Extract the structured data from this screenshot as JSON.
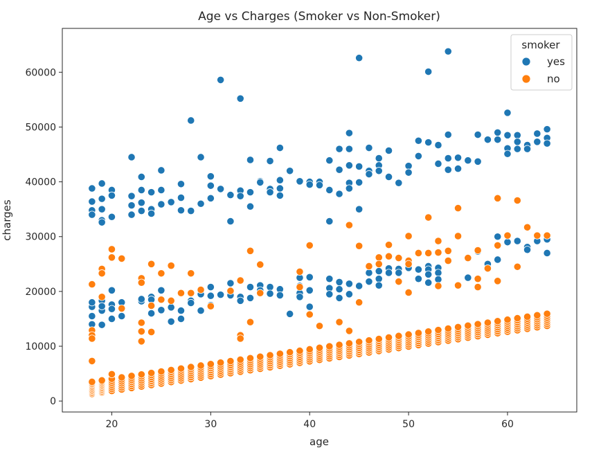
{
  "chart_data": {
    "type": "scatter",
    "title": "Age vs Charges (Smoker vs Non-Smoker)",
    "xlabel": "age",
    "ylabel": "charges",
    "xlim": [
      15,
      67
    ],
    "ylim": [
      -2000,
      68000
    ],
    "xticks": [
      20,
      30,
      40,
      50,
      60
    ],
    "yticks": [
      0,
      10000,
      20000,
      30000,
      40000,
      50000,
      60000
    ],
    "grid": false,
    "legend": {
      "title": "smoker",
      "position": "top-right"
    },
    "series": [
      {
        "name": "yes",
        "color": "#1f77b4",
        "points": [
          [
            18,
            38800
          ],
          [
            18,
            36400
          ],
          [
            18,
            34800
          ],
          [
            18,
            34000
          ],
          [
            18,
            17200
          ],
          [
            18,
            15500
          ],
          [
            18,
            14000
          ],
          [
            18,
            18000
          ],
          [
            19,
            39700
          ],
          [
            19,
            36900
          ],
          [
            19,
            35000
          ],
          [
            19,
            33000
          ],
          [
            19,
            32600
          ],
          [
            19,
            18300
          ],
          [
            19,
            16500
          ],
          [
            19,
            13900
          ],
          [
            19,
            17300
          ],
          [
            20,
            38500
          ],
          [
            20,
            37500
          ],
          [
            20,
            33600
          ],
          [
            20,
            20200
          ],
          [
            20,
            17600
          ],
          [
            20,
            16800
          ],
          [
            20,
            15000
          ],
          [
            21,
            15500
          ],
          [
            21,
            18000
          ],
          [
            22,
            44500
          ],
          [
            22,
            37400
          ],
          [
            22,
            35700
          ],
          [
            22,
            34000
          ],
          [
            23,
            40900
          ],
          [
            23,
            38500
          ],
          [
            23,
            36200
          ],
          [
            23,
            34700
          ],
          [
            23,
            18200
          ],
          [
            23,
            18600
          ],
          [
            24,
            38100
          ],
          [
            24,
            35000
          ],
          [
            24,
            34200
          ],
          [
            24,
            19000
          ],
          [
            24,
            18500
          ],
          [
            24,
            16000
          ],
          [
            25,
            42100
          ],
          [
            25,
            38500
          ],
          [
            25,
            35900
          ],
          [
            25,
            16600
          ],
          [
            25,
            20200
          ],
          [
            26,
            36300
          ],
          [
            26,
            14500
          ],
          [
            26,
            17100
          ],
          [
            27,
            39600
          ],
          [
            27,
            37100
          ],
          [
            27,
            34800
          ],
          [
            27,
            16500
          ],
          [
            27,
            15000
          ],
          [
            28,
            51200
          ],
          [
            28,
            34700
          ],
          [
            28,
            18300
          ],
          [
            28,
            17900
          ],
          [
            29,
            44500
          ],
          [
            29,
            36000
          ],
          [
            29,
            19500
          ],
          [
            29,
            16500
          ],
          [
            30,
            41000
          ],
          [
            30,
            39300
          ],
          [
            30,
            37000
          ],
          [
            30,
            20800
          ],
          [
            30,
            19200
          ],
          [
            30,
            17500
          ],
          [
            31,
            58600
          ],
          [
            31,
            38700
          ],
          [
            31,
            19400
          ],
          [
            32,
            37600
          ],
          [
            32,
            32800
          ],
          [
            32,
            21500
          ],
          [
            32,
            19300
          ],
          [
            33,
            55200
          ],
          [
            33,
            38400
          ],
          [
            33,
            37400
          ],
          [
            33,
            19000
          ],
          [
            33,
            18300
          ],
          [
            34,
            44000
          ],
          [
            34,
            38100
          ],
          [
            34,
            35500
          ],
          [
            34,
            20800
          ],
          [
            34,
            18800
          ],
          [
            35,
            40100
          ],
          [
            35,
            39900
          ],
          [
            35,
            21100
          ],
          [
            35,
            20200
          ],
          [
            36,
            43800
          ],
          [
            36,
            38700
          ],
          [
            36,
            38100
          ],
          [
            36,
            20800
          ],
          [
            36,
            19600
          ],
          [
            37,
            46200
          ],
          [
            37,
            40300
          ],
          [
            37,
            38800
          ],
          [
            37,
            37500
          ],
          [
            37,
            20400
          ],
          [
            37,
            19300
          ],
          [
            38,
            42000
          ],
          [
            38,
            15900
          ],
          [
            39,
            40100
          ],
          [
            39,
            22500
          ],
          [
            39,
            21000
          ],
          [
            39,
            19700
          ],
          [
            39,
            19000
          ],
          [
            40,
            40000
          ],
          [
            40,
            39500
          ],
          [
            40,
            22600
          ],
          [
            40,
            20200
          ],
          [
            40,
            17200
          ],
          [
            41,
            40000
          ],
          [
            41,
            39400
          ],
          [
            42,
            43900
          ],
          [
            42,
            38500
          ],
          [
            42,
            32800
          ],
          [
            42,
            22300
          ],
          [
            42,
            20600
          ],
          [
            42,
            19500
          ],
          [
            43,
            46000
          ],
          [
            43,
            42200
          ],
          [
            43,
            37800
          ],
          [
            43,
            21700
          ],
          [
            43,
            20400
          ],
          [
            43,
            18800
          ],
          [
            44,
            48900
          ],
          [
            44,
            46000
          ],
          [
            44,
            43000
          ],
          [
            44,
            39800
          ],
          [
            44,
            38800
          ],
          [
            44,
            21400
          ],
          [
            44,
            19500
          ],
          [
            45,
            62600
          ],
          [
            45,
            42800
          ],
          [
            45,
            39900
          ],
          [
            45,
            35000
          ],
          [
            45,
            21000
          ],
          [
            46,
            46200
          ],
          [
            46,
            42000
          ],
          [
            46,
            41400
          ],
          [
            46,
            23400
          ],
          [
            46,
            21800
          ],
          [
            47,
            44300
          ],
          [
            47,
            43000
          ],
          [
            47,
            42000
          ],
          [
            47,
            25000
          ],
          [
            47,
            23700
          ],
          [
            47,
            22300
          ],
          [
            47,
            21100
          ],
          [
            48,
            45700
          ],
          [
            48,
            40900
          ],
          [
            48,
            24200
          ],
          [
            48,
            23400
          ],
          [
            49,
            39800
          ],
          [
            49,
            24100
          ],
          [
            49,
            23400
          ],
          [
            50,
            42900
          ],
          [
            50,
            41700
          ],
          [
            50,
            24800
          ],
          [
            50,
            24300
          ],
          [
            51,
            47500
          ],
          [
            51,
            44700
          ],
          [
            51,
            24000
          ],
          [
            51,
            22300
          ],
          [
            52,
            60100
          ],
          [
            52,
            47200
          ],
          [
            52,
            24600
          ],
          [
            52,
            24000
          ],
          [
            52,
            23100
          ],
          [
            52,
            21600
          ],
          [
            53,
            46700
          ],
          [
            53,
            43300
          ],
          [
            53,
            24300
          ],
          [
            53,
            23400
          ],
          [
            53,
            22200
          ],
          [
            54,
            63800
          ],
          [
            54,
            48600
          ],
          [
            54,
            44300
          ],
          [
            54,
            42200
          ],
          [
            55,
            44400
          ],
          [
            55,
            42400
          ],
          [
            56,
            43900
          ],
          [
            56,
            22500
          ],
          [
            56,
            26100
          ],
          [
            57,
            48600
          ],
          [
            57,
            43700
          ],
          [
            57,
            27300
          ],
          [
            58,
            47700
          ],
          [
            58,
            25000
          ],
          [
            59,
            49000
          ],
          [
            59,
            47700
          ],
          [
            59,
            30000
          ],
          [
            59,
            25800
          ],
          [
            60,
            52600
          ],
          [
            60,
            48500
          ],
          [
            60,
            46100
          ],
          [
            60,
            45100
          ],
          [
            60,
            29000
          ],
          [
            61,
            48500
          ],
          [
            61,
            47300
          ],
          [
            61,
            46000
          ],
          [
            61,
            29200
          ],
          [
            62,
            46700
          ],
          [
            62,
            46000
          ],
          [
            62,
            28100
          ],
          [
            62,
            27600
          ],
          [
            63,
            48800
          ],
          [
            63,
            47300
          ],
          [
            63,
            29200
          ],
          [
            64,
            49600
          ],
          [
            64,
            48000
          ],
          [
            64,
            47000
          ],
          [
            64,
            29500
          ],
          [
            64,
            27000
          ]
        ]
      },
      {
        "name": "no",
        "color": "#ff7f0e",
        "points": [
          [
            18,
            21300
          ],
          [
            18,
            12900
          ],
          [
            18,
            12000
          ],
          [
            18,
            11400
          ],
          [
            18,
            7300
          ],
          [
            19,
            24100
          ],
          [
            19,
            23300
          ],
          [
            19,
            19000
          ],
          [
            20,
            27700
          ],
          [
            20,
            26200
          ],
          [
            20,
            4900
          ],
          [
            21,
            26000
          ],
          [
            21,
            16900
          ],
          [
            23,
            22400
          ],
          [
            23,
            21600
          ],
          [
            23,
            14300
          ],
          [
            23,
            12700
          ],
          [
            23,
            10900
          ],
          [
            24,
            25000
          ],
          [
            24,
            17400
          ],
          [
            24,
            12600
          ],
          [
            25,
            23300
          ],
          [
            25,
            18500
          ],
          [
            26,
            24700
          ],
          [
            26,
            18300
          ],
          [
            27,
            19700
          ],
          [
            28,
            23300
          ],
          [
            28,
            19700
          ],
          [
            29,
            20300
          ],
          [
            30,
            17300
          ],
          [
            32,
            20100
          ],
          [
            33,
            22000
          ],
          [
            33,
            12000
          ],
          [
            33,
            11400
          ],
          [
            34,
            27400
          ],
          [
            34,
            14400
          ],
          [
            35,
            24900
          ],
          [
            35,
            19700
          ],
          [
            39,
            23600
          ],
          [
            39,
            20800
          ],
          [
            40,
            28400
          ],
          [
            40,
            15800
          ],
          [
            41,
            13700
          ],
          [
            43,
            14400
          ],
          [
            44,
            32100
          ],
          [
            44,
            12800
          ],
          [
            45,
            28300
          ],
          [
            45,
            18000
          ],
          [
            46,
            24600
          ],
          [
            47,
            26200
          ],
          [
            47,
            25000
          ],
          [
            48,
            28500
          ],
          [
            48,
            26400
          ],
          [
            49,
            26100
          ],
          [
            49,
            21800
          ],
          [
            50,
            30100
          ],
          [
            50,
            25600
          ],
          [
            50,
            25000
          ],
          [
            50,
            19800
          ],
          [
            51,
            27000
          ],
          [
            52,
            33500
          ],
          [
            52,
            27000
          ],
          [
            53,
            29200
          ],
          [
            53,
            27100
          ],
          [
            53,
            21000
          ],
          [
            54,
            27400
          ],
          [
            54,
            25600
          ],
          [
            55,
            35200
          ],
          [
            55,
            30100
          ],
          [
            55,
            21100
          ],
          [
            56,
            26100
          ],
          [
            57,
            27500
          ],
          [
            57,
            22300
          ],
          [
            57,
            20800
          ],
          [
            58,
            24200
          ],
          [
            59,
            37000
          ],
          [
            59,
            28400
          ],
          [
            59,
            21900
          ],
          [
            60,
            30200
          ],
          [
            61,
            36600
          ],
          [
            61,
            24500
          ],
          [
            62,
            31700
          ],
          [
            63,
            30200
          ],
          [
            64,
            30200
          ]
        ]
      }
    ]
  }
}
